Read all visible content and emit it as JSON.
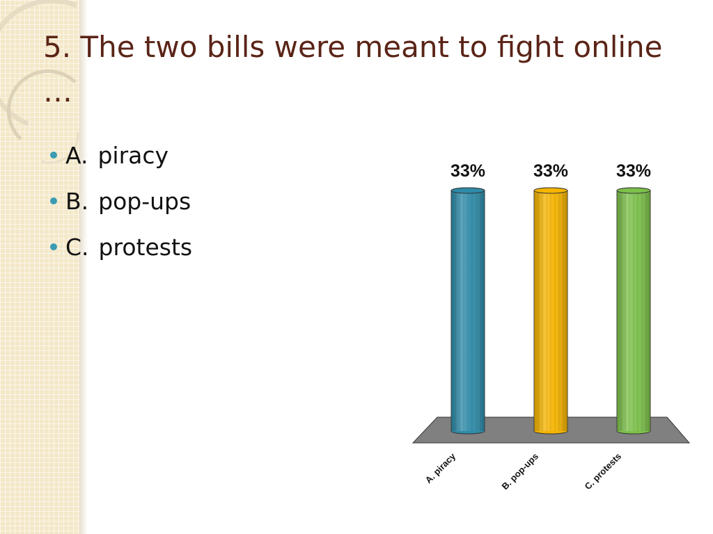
{
  "slide": {
    "title": "5.  The two bills were meant to fight online …",
    "options": [
      {
        "key": "A.",
        "label": "piracy"
      },
      {
        "key": "B.",
        "label": "pop-ups"
      },
      {
        "key": "C.",
        "label": "protests"
      }
    ]
  },
  "chart_data": {
    "type": "bar",
    "categories": [
      "A.  piracy",
      "B.  pop-ups",
      "C.  protests"
    ],
    "values": [
      33,
      33,
      33
    ],
    "value_labels": [
      "33%",
      "33%",
      "33%"
    ],
    "colors": [
      "#2e8ba8",
      "#f5b400",
      "#7cc04a"
    ],
    "ylim": [
      0,
      33
    ],
    "grid": false,
    "legend": "none"
  }
}
